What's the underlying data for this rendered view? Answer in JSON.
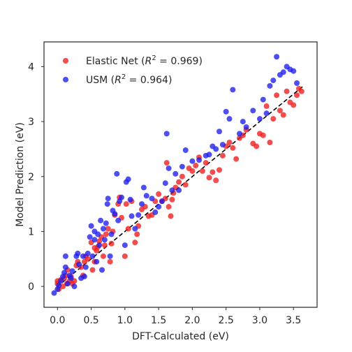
{
  "chart_data": {
    "type": "scatter",
    "xlabel": "DFT-Calculated (eV)",
    "ylabel": "Model Prediction (eV)",
    "xlim": [
      -0.2,
      3.85
    ],
    "ylim": [
      -0.38,
      4.45
    ],
    "x_ticks": [
      "0.0",
      "0.5",
      "1.0",
      "1.5",
      "2.0",
      "2.5",
      "3.0",
      "3.5"
    ],
    "x_tick_values": [
      0.0,
      0.5,
      1.0,
      1.5,
      2.0,
      2.5,
      3.0,
      3.5
    ],
    "y_ticks": [
      "0",
      "1",
      "2",
      "3",
      "4"
    ],
    "y_tick_values": [
      0,
      1,
      2,
      3,
      4
    ],
    "grid": false,
    "legend_position": "top-left",
    "reference_line": {
      "style": "dashed",
      "color": "#000000",
      "x": [
        0.0,
        3.65
      ],
      "y": [
        0.0,
        3.65
      ]
    },
    "series": [
      {
        "legend_prefix": "Elastic Net (",
        "legend_r2": " = 0.969)",
        "color": "#ee1c1c",
        "points": [
          [
            0.0,
            0.05
          ],
          [
            0.0,
            0.1
          ],
          [
            0.02,
            -0.05
          ],
          [
            0.05,
            0.12
          ],
          [
            0.08,
            0.0
          ],
          [
            0.1,
            0.15
          ],
          [
            0.12,
            0.2
          ],
          [
            0.14,
            0.05
          ],
          [
            0.15,
            0.3
          ],
          [
            0.18,
            0.1
          ],
          [
            0.2,
            0.18
          ],
          [
            0.22,
            0.05
          ],
          [
            0.25,
            0.1
          ],
          [
            0.28,
            0.38
          ],
          [
            0.3,
            0.45
          ],
          [
            0.35,
            0.35
          ],
          [
            0.38,
            0.2
          ],
          [
            0.4,
            0.45
          ],
          [
            0.42,
            0.55
          ],
          [
            0.45,
            0.5
          ],
          [
            0.5,
            0.8
          ],
          [
            0.52,
            0.3
          ],
          [
            0.55,
            0.45
          ],
          [
            0.55,
            0.7
          ],
          [
            0.58,
            0.65
          ],
          [
            0.6,
            0.72
          ],
          [
            0.62,
            0.82
          ],
          [
            0.65,
            0.9
          ],
          [
            0.68,
            0.55
          ],
          [
            0.7,
            0.75
          ],
          [
            0.72,
            0.95
          ],
          [
            0.75,
            1.05
          ],
          [
            0.78,
            0.45
          ],
          [
            0.8,
            0.78
          ],
          [
            0.82,
            1.0
          ],
          [
            0.85,
            1.3
          ],
          [
            0.9,
            1.5
          ],
          [
            0.92,
            1.62
          ],
          [
            0.95,
            1.25
          ],
          [
            1.0,
            0.55
          ],
          [
            1.02,
            1.5
          ],
          [
            1.05,
            1.05
          ],
          [
            1.1,
            1.55
          ],
          [
            1.15,
            0.8
          ],
          [
            1.18,
            0.95
          ],
          [
            1.2,
            1.1
          ],
          [
            1.25,
            1.4
          ],
          [
            1.3,
            1.45
          ],
          [
            1.35,
            1.28
          ],
          [
            1.4,
            1.3
          ],
          [
            1.45,
            1.55
          ],
          [
            1.5,
            1.68
          ],
          [
            1.55,
            1.55
          ],
          [
            1.6,
            1.6
          ],
          [
            1.62,
            2.25
          ],
          [
            1.65,
            1.45
          ],
          [
            1.68,
            1.28
          ],
          [
            1.7,
            1.58
          ],
          [
            1.72,
            1.7
          ],
          [
            1.75,
            1.8
          ],
          [
            1.8,
            1.9
          ],
          [
            1.85,
            2.0
          ],
          [
            1.9,
            1.85
          ],
          [
            1.95,
            2.15
          ],
          [
            2.0,
            2.1
          ],
          [
            2.05,
            2.2
          ],
          [
            2.1,
            2.35
          ],
          [
            2.15,
            2.1
          ],
          [
            2.2,
            2.25
          ],
          [
            2.25,
            1.98
          ],
          [
            2.3,
            2.08
          ],
          [
            2.35,
            1.93
          ],
          [
            2.4,
            2.12
          ],
          [
            2.45,
            2.38
          ],
          [
            2.5,
            2.55
          ],
          [
            2.55,
            2.62
          ],
          [
            2.6,
            2.52
          ],
          [
            2.65,
            2.32
          ],
          [
            2.7,
            2.7
          ],
          [
            2.75,
            2.75
          ],
          [
            2.8,
            2.85
          ],
          [
            2.9,
            2.6
          ],
          [
            2.95,
            2.55
          ],
          [
            3.0,
            2.78
          ],
          [
            3.05,
            2.75
          ],
          [
            3.1,
            3.28
          ],
          [
            3.15,
            2.62
          ],
          [
            3.2,
            3.05
          ],
          [
            3.25,
            3.48
          ],
          [
            3.3,
            3.2
          ],
          [
            3.35,
            3.12
          ],
          [
            3.4,
            3.55
          ],
          [
            3.45,
            3.35
          ],
          [
            3.5,
            3.3
          ],
          [
            3.55,
            3.48
          ],
          [
            3.58,
            3.6
          ],
          [
            3.62,
            3.55
          ]
        ]
      },
      {
        "legend_prefix": "USM (",
        "legend_r2": " = 0.964)",
        "color": "#1c1cee",
        "points": [
          [
            -0.05,
            -0.12
          ],
          [
            0.0,
            -0.05
          ],
          [
            0.02,
            0.02
          ],
          [
            0.05,
            0.1
          ],
          [
            0.08,
            0.18
          ],
          [
            0.1,
            0.25
          ],
          [
            0.12,
            0.35
          ],
          [
            0.12,
            0.55
          ],
          [
            0.15,
            0.05
          ],
          [
            0.18,
            0.2
          ],
          [
            0.2,
            0.15
          ],
          [
            0.22,
            0.28
          ],
          [
            0.25,
            0.0
          ],
          [
            0.28,
            0.55
          ],
          [
            0.3,
            0.6
          ],
          [
            0.32,
            0.4
          ],
          [
            0.35,
            0.15
          ],
          [
            0.38,
            0.55
          ],
          [
            0.4,
            0.18
          ],
          [
            0.42,
            0.35
          ],
          [
            0.45,
            0.6
          ],
          [
            0.48,
            0.9
          ],
          [
            0.5,
            1.1
          ],
          [
            0.52,
            0.55
          ],
          [
            0.55,
            1.0
          ],
          [
            0.55,
            0.85
          ],
          [
            0.58,
            0.45
          ],
          [
            0.6,
            0.95
          ],
          [
            0.62,
            0.75
          ],
          [
            0.64,
            1.2
          ],
          [
            0.66,
            0.3
          ],
          [
            0.68,
            1.05
          ],
          [
            0.7,
            0.85
          ],
          [
            0.72,
            1.15
          ],
          [
            0.74,
            1.5
          ],
          [
            0.75,
            1.6
          ],
          [
            0.78,
            0.55
          ],
          [
            0.8,
            0.95
          ],
          [
            0.82,
            1.38
          ],
          [
            0.85,
            1.32
          ],
          [
            0.88,
            2.05
          ],
          [
            0.9,
            1.2
          ],
          [
            0.92,
            1.55
          ],
          [
            0.95,
            1.62
          ],
          [
            1.0,
            0.75
          ],
          [
            1.02,
            1.9
          ],
          [
            1.05,
            1.95
          ],
          [
            1.08,
            1.58
          ],
          [
            1.1,
            1.28
          ],
          [
            1.15,
            1.05
          ],
          [
            1.2,
            1.3
          ],
          [
            1.25,
            1.5
          ],
          [
            1.28,
            1.8
          ],
          [
            1.32,
            1.65
          ],
          [
            1.4,
            1.6
          ],
          [
            1.45,
            1.35
          ],
          [
            1.5,
            1.45
          ],
          [
            1.55,
            1.55
          ],
          [
            1.6,
            1.88
          ],
          [
            1.62,
            2.78
          ],
          [
            1.65,
            2.15
          ],
          [
            1.7,
            1.75
          ],
          [
            1.75,
            2.05
          ],
          [
            1.8,
            1.75
          ],
          [
            1.85,
            2.18
          ],
          [
            1.9,
            2.48
          ],
          [
            2.0,
            2.28
          ],
          [
            2.1,
            2.3
          ],
          [
            2.2,
            2.38
          ],
          [
            2.25,
            2.4
          ],
          [
            2.3,
            2.55
          ],
          [
            2.35,
            2.5
          ],
          [
            2.4,
            2.82
          ],
          [
            2.45,
            2.58
          ],
          [
            2.5,
            3.18
          ],
          [
            2.55,
            3.05
          ],
          [
            2.6,
            3.58
          ],
          [
            2.7,
            2.78
          ],
          [
            2.75,
            3.0
          ],
          [
            2.8,
            2.9
          ],
          [
            2.9,
            3.2
          ],
          [
            3.0,
            3.05
          ],
          [
            3.05,
            3.4
          ],
          [
            3.1,
            3.15
          ],
          [
            3.15,
            3.65
          ],
          [
            3.2,
            3.75
          ],
          [
            3.25,
            4.18
          ],
          [
            3.3,
            3.85
          ],
          [
            3.35,
            3.9
          ],
          [
            3.4,
            4.0
          ],
          [
            3.45,
            3.95
          ],
          [
            3.5,
            3.92
          ],
          [
            3.55,
            3.7
          ]
        ]
      }
    ]
  }
}
